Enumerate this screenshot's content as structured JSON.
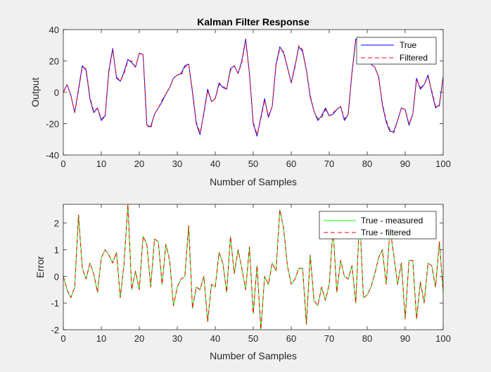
{
  "chart_data": [
    {
      "type": "line",
      "title": "Kalman Filter Response",
      "xlabel": "Number of Samples",
      "ylabel": "Output",
      "xlim": [
        0,
        100
      ],
      "ylim": [
        -40,
        40
      ],
      "xticks": [
        0,
        10,
        20,
        30,
        40,
        50,
        60,
        70,
        80,
        90,
        100
      ],
      "yticks": [
        -40,
        -20,
        0,
        20,
        40
      ],
      "legend_position": "top-right",
      "grid": false,
      "series": [
        {
          "name": "True",
          "color": "#0000ff",
          "style": "solid",
          "x": [
            0,
            1,
            2,
            3,
            4,
            5,
            6,
            7,
            8,
            9,
            10,
            11,
            12,
            13,
            14,
            15,
            16,
            17,
            18,
            19,
            20,
            21,
            22,
            23,
            24,
            25,
            26,
            27,
            28,
            29,
            30,
            31,
            32,
            33,
            34,
            35,
            36,
            37,
            38,
            39,
            40,
            41,
            42,
            43,
            44,
            45,
            46,
            47,
            48,
            49,
            50,
            51,
            52,
            53,
            54,
            55,
            56,
            57,
            58,
            59,
            60,
            61,
            62,
            63,
            64,
            65,
            66,
            67,
            68,
            69,
            70,
            71,
            72,
            73,
            74,
            75,
            76,
            77,
            78,
            79,
            80,
            81,
            82,
            83,
            84,
            85,
            86,
            87,
            88,
            89,
            90,
            91,
            92,
            93,
            94,
            95,
            96,
            97,
            98,
            99,
            100
          ],
          "values": [
            0,
            5,
            -2,
            -13,
            2,
            17,
            14,
            -4,
            -13,
            -10,
            -18,
            -15,
            14,
            28,
            9,
            7,
            13,
            21,
            19,
            16,
            25,
            24,
            -21,
            -22,
            -14,
            -10,
            -6,
            -1,
            3,
            9,
            11,
            12,
            17,
            18,
            0,
            -20,
            -27,
            -13,
            2,
            -6,
            -4,
            6,
            3,
            2,
            15,
            17,
            12,
            20,
            34,
            12,
            -20,
            -28,
            -16,
            -4,
            -16,
            -9,
            18,
            29,
            25,
            16,
            6,
            17,
            29,
            26,
            14,
            -3,
            -12,
            -18,
            -15,
            -10,
            -15,
            -14,
            -11,
            -9,
            -18,
            -14,
            13,
            34,
            33,
            19,
            22,
            18,
            16,
            10,
            -8,
            -19,
            -25,
            -25,
            -18,
            -10,
            -11,
            -21,
            -14,
            9,
            2,
            5,
            11,
            0,
            -10,
            -8,
            10
          ]
        },
        {
          "name": "Filtered",
          "color": "#ff0000",
          "style": "dashed",
          "x": [
            0,
            1,
            2,
            3,
            4,
            5,
            6,
            7,
            8,
            9,
            10,
            11,
            12,
            13,
            14,
            15,
            16,
            17,
            18,
            19,
            20,
            21,
            22,
            23,
            24,
            25,
            26,
            27,
            28,
            29,
            30,
            31,
            32,
            33,
            34,
            35,
            36,
            37,
            38,
            39,
            40,
            41,
            42,
            43,
            44,
            45,
            46,
            47,
            48,
            49,
            50,
            51,
            52,
            53,
            54,
            55,
            56,
            57,
            58,
            59,
            60,
            61,
            62,
            63,
            64,
            65,
            66,
            67,
            68,
            69,
            70,
            71,
            72,
            73,
            74,
            75,
            76,
            77,
            78,
            79,
            80,
            81,
            82,
            83,
            84,
            85,
            86,
            87,
            88,
            89,
            90,
            91,
            92,
            93,
            94,
            95,
            96,
            97,
            98,
            99,
            100
          ],
          "values": [
            0,
            5,
            -2,
            -13,
            1,
            16,
            15,
            -3,
            -12,
            -10,
            -17,
            -15,
            13,
            27,
            10,
            7,
            12,
            20,
            20,
            16,
            25,
            24,
            -21,
            -23,
            -14,
            -10,
            -5,
            -1,
            3,
            9,
            11,
            11,
            16,
            18,
            1,
            -19,
            -26,
            -14,
            1,
            -6,
            -4,
            5,
            4,
            2,
            14,
            17,
            12,
            19,
            33,
            12,
            -19,
            -27,
            -17,
            -5,
            -15,
            -9,
            17,
            28,
            26,
            16,
            6,
            16,
            30,
            27,
            14,
            -2,
            -12,
            -17,
            -16,
            -11,
            -15,
            -13,
            -11,
            -9,
            -17,
            -14,
            12,
            33,
            33,
            20,
            21,
            18,
            16,
            10,
            -7,
            -18,
            -24,
            -26,
            -18,
            -10,
            -11,
            -20,
            -14,
            8,
            3,
            5,
            10,
            1,
            -9,
            -9,
            10
          ]
        }
      ]
    },
    {
      "type": "line",
      "title": "",
      "xlabel": "Number of Samples",
      "ylabel": "Error",
      "xlim": [
        0,
        100
      ],
      "ylim": [
        -2,
        2.7
      ],
      "xticks": [
        0,
        10,
        20,
        30,
        40,
        50,
        60,
        70,
        80,
        90,
        100
      ],
      "yticks": [
        -2,
        -1,
        0,
        1,
        2
      ],
      "legend_position": "top-right",
      "grid": false,
      "series": [
        {
          "name": "True - measured",
          "color": "#00ff00",
          "style": "solid",
          "x": [
            0,
            1,
            2,
            3,
            4,
            5,
            6,
            7,
            8,
            9,
            10,
            11,
            12,
            13,
            14,
            15,
            16,
            17,
            18,
            19,
            20,
            21,
            22,
            23,
            24,
            25,
            26,
            27,
            28,
            29,
            30,
            31,
            32,
            33,
            34,
            35,
            36,
            37,
            38,
            39,
            40,
            41,
            42,
            43,
            44,
            45,
            46,
            47,
            48,
            49,
            50,
            51,
            52,
            53,
            54,
            55,
            56,
            57,
            58,
            59,
            60,
            61,
            62,
            63,
            64,
            65,
            66,
            67,
            68,
            69,
            70,
            71,
            72,
            73,
            74,
            75,
            76,
            77,
            78,
            79,
            80,
            81,
            82,
            83,
            84,
            85,
            86,
            87,
            88,
            89,
            90,
            91,
            92,
            93,
            94,
            95,
            96,
            97,
            98,
            99,
            100
          ],
          "values": [
            0,
            -0.5,
            -0.8,
            -0.4,
            2.3,
            0.3,
            -0.1,
            0.5,
            0.1,
            -0.6,
            0.7,
            1.0,
            0.8,
            0.5,
            0.9,
            -0.8,
            0.5,
            2.7,
            -0.5,
            0.2,
            -0.5,
            1.5,
            1.2,
            -0.4,
            1.4,
            1.3,
            -0.3,
            1.2,
            0.6,
            -1.1,
            -0.4,
            -0.1,
            0.0,
            1.9,
            -1.2,
            -0.4,
            -0.5,
            0.0,
            -1.7,
            -0.3,
            -0.4,
            0.9,
            0.5,
            -0.6,
            1.5,
            0.1,
            1.0,
            0.3,
            -0.5,
            1.1,
            -1.4,
            0.4,
            -2.0,
            0.0,
            -0.3,
            0.5,
            0.2,
            2.5,
            1.8,
            0.4,
            -0.3,
            -0.1,
            0.3,
            0.3,
            -1.8,
            0.8,
            -0.9,
            -1.1,
            -0.4,
            -0.9,
            -0.3,
            1.8,
            -0.6,
            0.6,
            0.0,
            -0.1,
            0.4,
            -1.0,
            2.3,
            -0.8,
            -0.7,
            -0.4,
            0.1,
            0.7,
            1.0,
            -0.3,
            1.8,
            0.8,
            -0.3,
            0.5,
            -1.6,
            0.6,
            0.6,
            -1.6,
            -0.2,
            -1.0,
            0.5,
            0.4,
            -0.4,
            1.3,
            -0.6
          ]
        },
        {
          "name": "True - filtered",
          "color": "#ff0000",
          "style": "dashed",
          "x": [
            0,
            1,
            2,
            3,
            4,
            5,
            6,
            7,
            8,
            9,
            10,
            11,
            12,
            13,
            14,
            15,
            16,
            17,
            18,
            19,
            20,
            21,
            22,
            23,
            24,
            25,
            26,
            27,
            28,
            29,
            30,
            31,
            32,
            33,
            34,
            35,
            36,
            37,
            38,
            39,
            40,
            41,
            42,
            43,
            44,
            45,
            46,
            47,
            48,
            49,
            50,
            51,
            52,
            53,
            54,
            55,
            56,
            57,
            58,
            59,
            60,
            61,
            62,
            63,
            64,
            65,
            66,
            67,
            68,
            69,
            70,
            71,
            72,
            73,
            74,
            75,
            76,
            77,
            78,
            79,
            80,
            81,
            82,
            83,
            84,
            85,
            86,
            87,
            88,
            89,
            90,
            91,
            92,
            93,
            94,
            95,
            96,
            97,
            98,
            99,
            100
          ],
          "values": [
            0,
            -0.5,
            -0.8,
            -0.4,
            2.3,
            0.3,
            -0.1,
            0.5,
            0.1,
            -0.6,
            0.7,
            1.0,
            0.8,
            0.5,
            0.9,
            -0.8,
            0.5,
            2.7,
            -0.5,
            0.2,
            -0.5,
            1.5,
            1.2,
            -0.4,
            1.4,
            1.3,
            -0.3,
            1.2,
            0.6,
            -1.1,
            -0.4,
            -0.1,
            0.0,
            1.9,
            -1.2,
            -0.4,
            -0.5,
            0.0,
            -1.7,
            -0.3,
            -0.4,
            0.9,
            0.5,
            -0.6,
            1.5,
            0.1,
            1.0,
            0.3,
            -0.5,
            1.1,
            -1.4,
            0.4,
            -2.0,
            0.0,
            -0.3,
            0.5,
            0.2,
            2.5,
            1.8,
            0.4,
            -0.3,
            -0.1,
            0.3,
            0.3,
            -1.8,
            0.8,
            -0.9,
            -1.1,
            -0.4,
            -0.9,
            -0.3,
            1.8,
            -0.6,
            0.6,
            0.0,
            -0.1,
            0.4,
            -1.0,
            2.3,
            -0.8,
            -0.7,
            -0.4,
            0.1,
            0.7,
            1.0,
            -0.3,
            1.8,
            0.8,
            -0.3,
            0.5,
            -1.6,
            0.6,
            0.6,
            -1.6,
            -0.2,
            -1.0,
            0.5,
            0.4,
            -0.4,
            1.3,
            -0.6
          ]
        }
      ]
    }
  ]
}
